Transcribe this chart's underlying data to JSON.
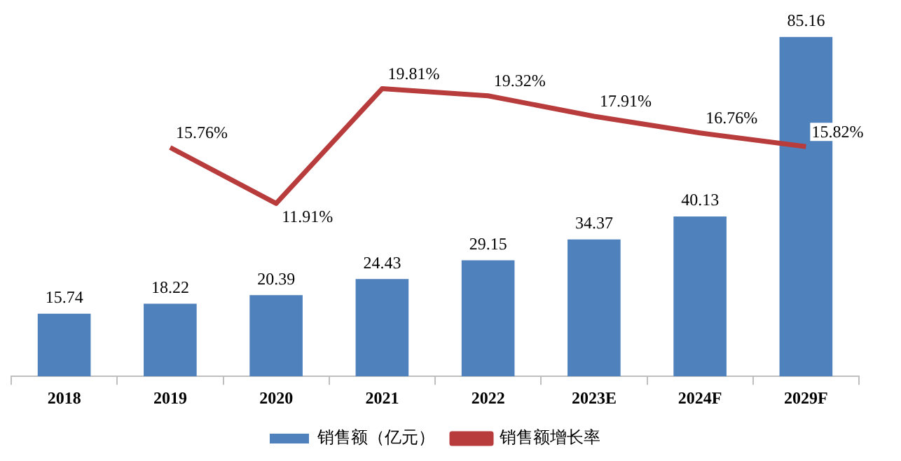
{
  "chart_data": {
    "type": "bar",
    "categories": [
      "2018",
      "2019",
      "2020",
      "2021",
      "2022",
      "2023E",
      "2024F",
      "2029F"
    ],
    "series": [
      {
        "name": "销售额（亿元）",
        "color": "#4f81bd",
        "values": [
          15.74,
          18.22,
          20.39,
          24.43,
          29.15,
          34.37,
          40.13,
          85.16
        ]
      },
      {
        "name": "销售额增长率",
        "type": "line",
        "axis": "y2",
        "color": "#b83c3c",
        "values": [
          null,
          15.76,
          11.91,
          19.81,
          19.32,
          17.91,
          16.76,
          15.82
        ],
        "value_labels": [
          null,
          "15.76%",
          "11.91%",
          "19.81%",
          "19.32%",
          "17.91%",
          "16.76%",
          "15.82%"
        ]
      }
    ],
    "ylim": [
      0,
      86
    ],
    "y2lim": [
      0,
      23.6
    ],
    "tick_labels": "x",
    "data_labels": true,
    "legend": "bottom",
    "grid": false,
    "marker": "none"
  }
}
